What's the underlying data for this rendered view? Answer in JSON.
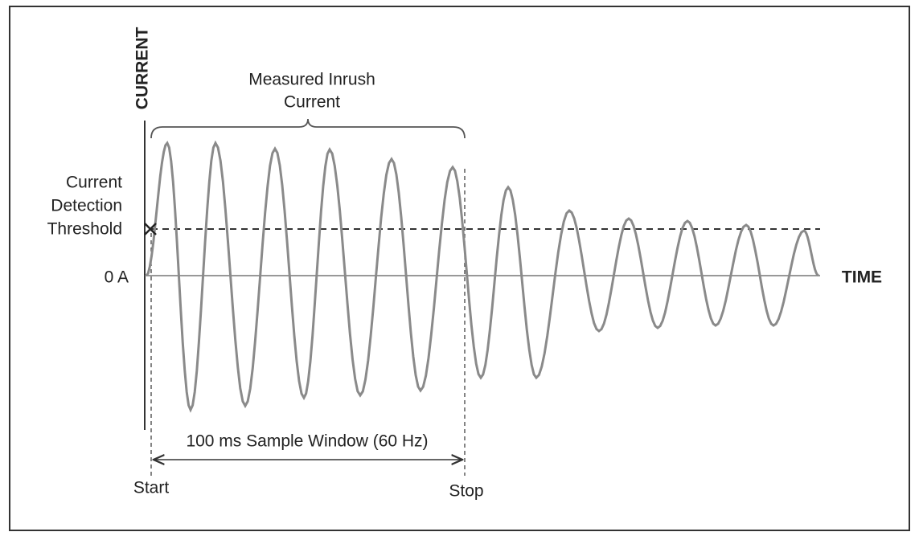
{
  "y_axis_label": "CURRENT",
  "x_axis_label": "TIME",
  "zero_label": "0 A",
  "inrush_label": [
    "Measured Inrush",
    "Current"
  ],
  "threshold_label": [
    "Current",
    "Detection",
    "Threshold"
  ],
  "window_label": "100 ms Sample Window (60 Hz)",
  "start_label": "Start",
  "stop_label": "Stop"
}
